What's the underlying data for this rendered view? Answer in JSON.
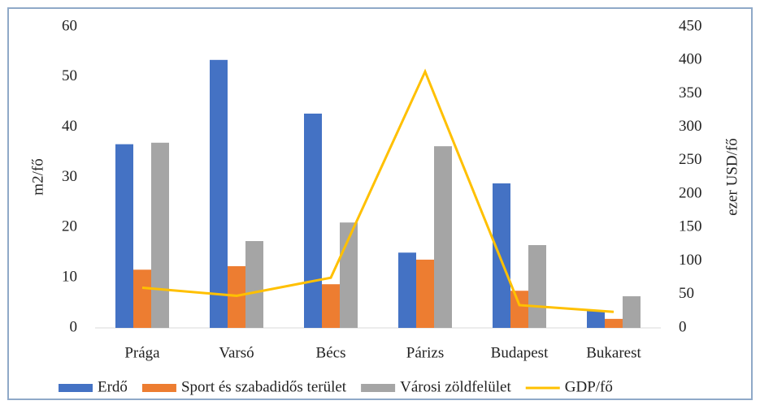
{
  "chart_data": {
    "type": "bar_line",
    "ylabel": "m2/fő",
    "y2label": "ezer USD/fő",
    "categories": [
      "Prága",
      "Varsó",
      "Bécs",
      "Párizs",
      "Budapest",
      "Bukarest"
    ],
    "series": [
      {
        "name": "Erdő",
        "color": "#4472c4",
        "type": "bar",
        "values": [
          36.6,
          53.4,
          42.7,
          15.0,
          28.8,
          3.4
        ]
      },
      {
        "name": "Sport és szabadidős terület",
        "color": "#ed7d31",
        "type": "bar",
        "values": [
          11.6,
          12.3,
          8.7,
          13.6,
          7.4,
          1.8
        ]
      },
      {
        "name": "Városi zöldfelület",
        "color": "#a5a5a5",
        "type": "bar",
        "values": [
          36.9,
          17.3,
          21.0,
          36.2,
          16.5,
          6.3
        ]
      },
      {
        "name": "GDP/fő",
        "color": "#ffc000",
        "type": "line",
        "axis": "y2",
        "values": [
          60,
          48,
          75,
          383,
          34,
          24
        ]
      }
    ],
    "ylim": [
      0,
      60
    ],
    "yticks": [
      0,
      10,
      20,
      30,
      40,
      50,
      60
    ],
    "y2lim": [
      0,
      450
    ],
    "y2ticks": [
      0,
      50,
      100,
      150,
      200,
      250,
      300,
      350,
      400,
      450
    ],
    "grid": false,
    "legend": "bottom"
  }
}
